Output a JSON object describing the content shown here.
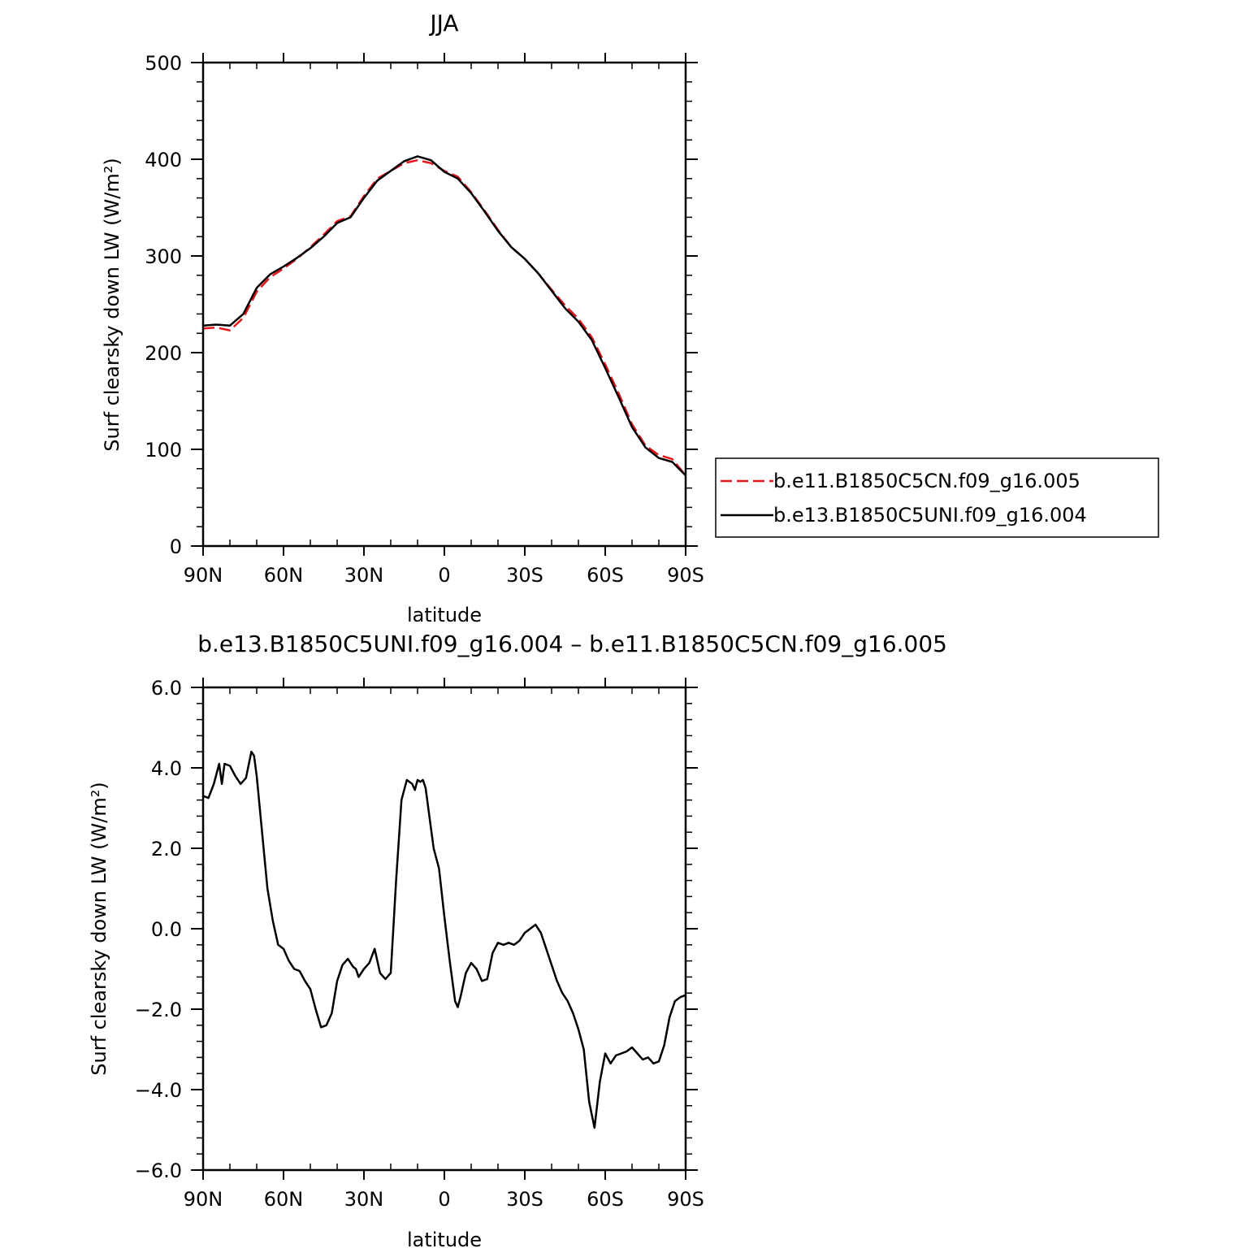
{
  "chart_data": [
    {
      "type": "line",
      "title": "JJA",
      "xlabel": "latitude",
      "ylabel": "Surf clearsky down LW (W/m²)",
      "xlim": [
        90,
        -90
      ],
      "ylim": [
        0,
        500
      ],
      "x_ticks": [
        90,
        60,
        30,
        0,
        -30,
        -60,
        -90
      ],
      "x_tick_labels": [
        "90N",
        "60N",
        "30N",
        "0",
        "30S",
        "60S",
        "90S"
      ],
      "y_ticks": [
        0,
        100,
        200,
        300,
        400,
        500
      ],
      "y_tick_labels": [
        "0",
        "100",
        "200",
        "300",
        "400",
        "500"
      ],
      "legend": "right",
      "series": [
        {
          "name": "b.e11.B1850C5CN.f09_g16.005",
          "color": "#e8151b",
          "dash": "dashed",
          "x": [
            90,
            85,
            80,
            75,
            70,
            65,
            60,
            55,
            50,
            45,
            40,
            35,
            30,
            25,
            20,
            15,
            10,
            5,
            0,
            -5,
            -10,
            -15,
            -20,
            -25,
            -30,
            -35,
            -40,
            -45,
            -50,
            -55,
            -60,
            -65,
            -70,
            -75,
            -80,
            -85,
            -90
          ],
          "y": [
            225,
            226,
            223,
            236,
            263,
            278,
            287,
            297,
            309,
            322,
            336,
            341,
            362,
            380,
            388,
            396,
            399,
            396,
            388,
            382,
            366,
            347,
            327,
            309,
            297,
            282,
            265,
            249,
            235,
            216,
            188,
            158,
            126,
            104,
            94,
            90,
            73
          ]
        },
        {
          "name": "b.e13.B1850C5UNI.f09_g16.004",
          "color": "#000000",
          "dash": "solid",
          "x": [
            90,
            85,
            80,
            75,
            70,
            65,
            60,
            55,
            50,
            45,
            40,
            35,
            30,
            25,
            20,
            15,
            10,
            5,
            0,
            -5,
            -10,
            -15,
            -20,
            -25,
            -30,
            -35,
            -40,
            -45,
            -50,
            -55,
            -60,
            -65,
            -70,
            -75,
            -80,
            -85,
            -90
          ],
          "y": [
            228,
            229,
            228,
            240,
            267,
            281,
            289,
            298,
            308,
            320,
            334,
            340,
            360,
            378,
            388,
            398,
            403,
            399,
            387,
            380,
            365,
            346,
            326,
            309,
            297,
            282,
            264,
            246,
            232,
            213,
            184,
            154,
            123,
            102,
            91,
            87,
            73
          ]
        }
      ]
    },
    {
      "type": "line",
      "title": "b.e13.B1850C5UNI.f09_g16.004 – b.e11.B1850C5CN.f09_g16.005",
      "xlabel": "latitude",
      "ylabel": "Surf clearsky down LW (W/m²)",
      "xlim": [
        90,
        -90
      ],
      "ylim": [
        -6,
        6
      ],
      "x_ticks": [
        90,
        60,
        30,
        0,
        -30,
        -60,
        -90
      ],
      "x_tick_labels": [
        "90N",
        "60N",
        "30N",
        "0",
        "30S",
        "60S",
        "90S"
      ],
      "y_ticks": [
        -6,
        -4,
        -2,
        0,
        2,
        4,
        6
      ],
      "y_tick_labels": [
        "−6.0",
        "−4.0",
        "−2.0",
        "0.0",
        "2.0",
        "4.0",
        "6.0"
      ],
      "series": [
        {
          "color": "#000000",
          "dash": "solid",
          "x": [
            90,
            88,
            86,
            84,
            83,
            82,
            80,
            78,
            76,
            74,
            72,
            71,
            70,
            68,
            66,
            64,
            62,
            60,
            58,
            56,
            54,
            52,
            50,
            48,
            46,
            44,
            42,
            40,
            38,
            36,
            34,
            33,
            32,
            30,
            28,
            26,
            25,
            24,
            22,
            20,
            18,
            16,
            14,
            12,
            11,
            10,
            9,
            8,
            7,
            6,
            4,
            2,
            0,
            -2,
            -4,
            -5,
            -6,
            -8,
            -10,
            -12,
            -14,
            -16,
            -18,
            -20,
            -22,
            -24,
            -26,
            -28,
            -30,
            -32,
            -34,
            -36,
            -38,
            -40,
            -42,
            -44,
            -46,
            -48,
            -50,
            -52,
            -54,
            -56,
            -58,
            -60,
            -62,
            -64,
            -66,
            -68,
            -70,
            -72,
            -74,
            -76,
            -78,
            -80,
            -82,
            -84,
            -86,
            -88,
            -90
          ],
          "y": [
            3.3,
            3.25,
            3.6,
            4.1,
            3.6,
            4.1,
            4.05,
            3.8,
            3.6,
            3.75,
            4.4,
            4.3,
            3.8,
            2.4,
            1.0,
            0.2,
            -0.4,
            -0.5,
            -0.8,
            -1.0,
            -1.05,
            -1.3,
            -1.5,
            -2.0,
            -2.45,
            -2.4,
            -2.1,
            -1.3,
            -0.9,
            -0.75,
            -0.95,
            -1.0,
            -1.2,
            -1.0,
            -0.85,
            -0.5,
            -0.8,
            -1.1,
            -1.25,
            -1.1,
            1.2,
            3.2,
            3.7,
            3.6,
            3.45,
            3.7,
            3.65,
            3.7,
            3.5,
            3.0,
            2.0,
            1.5,
            0.3,
            -0.8,
            -1.8,
            -1.95,
            -1.7,
            -1.1,
            -0.85,
            -1.0,
            -1.3,
            -1.25,
            -0.6,
            -0.35,
            -0.4,
            -0.35,
            -0.4,
            -0.3,
            -0.1,
            0.0,
            0.1,
            -0.1,
            -0.5,
            -0.9,
            -1.3,
            -1.6,
            -1.8,
            -2.1,
            -2.5,
            -3.0,
            -4.3,
            -4.95,
            -3.8,
            -3.1,
            -3.35,
            -3.15,
            -3.1,
            -3.05,
            -2.95,
            -3.1,
            -3.25,
            -3.2,
            -3.35,
            -3.3,
            -2.9,
            -2.2,
            -1.8,
            -1.7,
            -1.65
          ]
        }
      ]
    }
  ]
}
